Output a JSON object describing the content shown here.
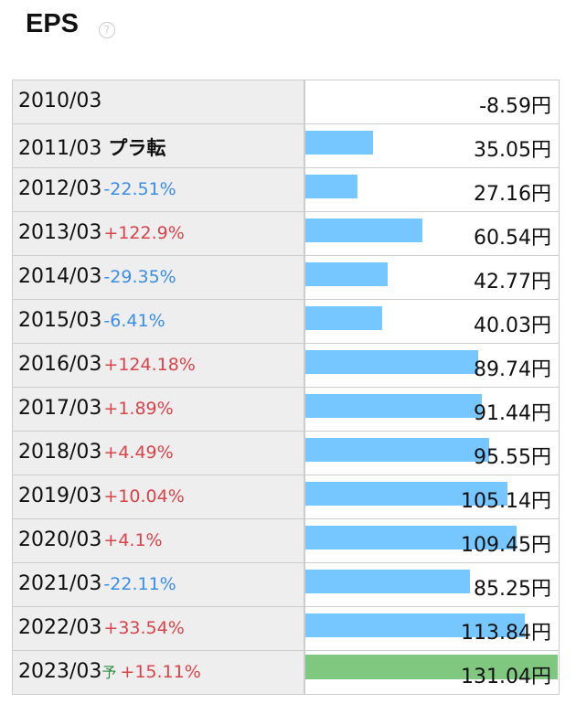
{
  "header": {
    "title": "EPS"
  },
  "table": {
    "bar_color": "#76c7ff",
    "forecast_bar_color": "#80c880",
    "rows": [
      {
        "period": "2010/03",
        "value": -8.59,
        "value_label": "-8.59円"
      },
      {
        "period": "2011/03",
        "tag": "プラ転",
        "value": 35.05,
        "value_label": "35.05円"
      },
      {
        "period": "2012/03",
        "change": "-22.51%",
        "value": 27.16,
        "value_label": "27.16円"
      },
      {
        "period": "2013/03",
        "change": "+122.9%",
        "value": 60.54,
        "value_label": "60.54円"
      },
      {
        "period": "2014/03",
        "change": "-29.35%",
        "value": 42.77,
        "value_label": "42.77円"
      },
      {
        "period": "2015/03",
        "change": "-6.41%",
        "value": 40.03,
        "value_label": "40.03円"
      },
      {
        "period": "2016/03",
        "change": "+124.18%",
        "value": 89.74,
        "value_label": "89.74円"
      },
      {
        "period": "2017/03",
        "change": "+1.89%",
        "value": 91.44,
        "value_label": "91.44円"
      },
      {
        "period": "2018/03",
        "change": "+4.49%",
        "value": 95.55,
        "value_label": "95.55円"
      },
      {
        "period": "2019/03",
        "change": "+10.04%",
        "value": 105.14,
        "value_label": "105.14円"
      },
      {
        "period": "2020/03",
        "change": "+4.1%",
        "value": 109.45,
        "value_label": "109.45円"
      },
      {
        "period": "2021/03",
        "change": "-22.11%",
        "value": 85.25,
        "value_label": "85.25円"
      },
      {
        "period": "2022/03",
        "change": "+33.54%",
        "value": 113.84,
        "value_label": "113.84円"
      },
      {
        "period": "2023/03",
        "forecast": "予",
        "change": "+15.11%",
        "value": 131.04,
        "value_label": "131.04円"
      }
    ]
  }
}
